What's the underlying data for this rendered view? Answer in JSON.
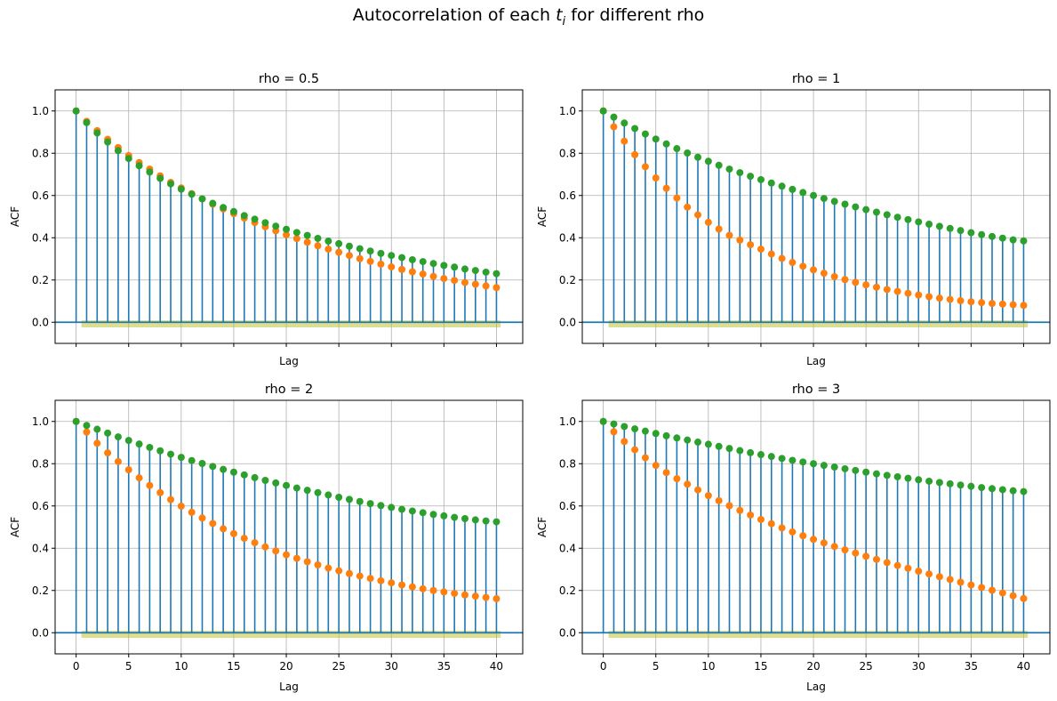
{
  "figure": {
    "title_prefix": "Autocorrelation of each ",
    "title_var": "t",
    "title_sub": "i",
    "title_suffix": " for different rho"
  },
  "colors": {
    "stem": "#1f77b4",
    "series_a": "#ff7f0e",
    "series_b": "#2ca02c",
    "confidence_band": "#bcbd22",
    "grid": "#b0b0b0"
  },
  "chart_data": [
    {
      "type": "stem",
      "title": "rho = 0.5",
      "xlabel": "Lag",
      "ylabel": "ACF",
      "xlim": [
        -2,
        42.5
      ],
      "ylim": [
        -0.1,
        1.1
      ],
      "xticks": [
        0,
        5,
        10,
        15,
        20,
        25,
        30,
        35,
        40
      ],
      "yticks": [
        0.0,
        0.2,
        0.4,
        0.6,
        0.8,
        1.0
      ],
      "show_xtick_labels": false,
      "grid": true,
      "lags_from": 0,
      "lags_to": 40,
      "series": [
        {
          "values": [
            1.0,
            0.951,
            0.907,
            0.866,
            0.827,
            0.789,
            0.756,
            0.725,
            0.693,
            0.662,
            0.636,
            0.609,
            0.584,
            0.559,
            0.536,
            0.514,
            0.493,
            0.472,
            0.452,
            0.433,
            0.414,
            0.396,
            0.379,
            0.362,
            0.346,
            0.331,
            0.316,
            0.301,
            0.288,
            0.275,
            0.262,
            0.25,
            0.239,
            0.228,
            0.217,
            0.207,
            0.198,
            0.188,
            0.18,
            0.172,
            0.164
          ]
        },
        {
          "values": [
            1.0,
            0.945,
            0.896,
            0.853,
            0.812,
            0.775,
            0.741,
            0.711,
            0.681,
            0.655,
            0.63,
            0.606,
            0.584,
            0.563,
            0.543,
            0.524,
            0.505,
            0.488,
            0.471,
            0.455,
            0.44,
            0.425,
            0.411,
            0.397,
            0.384,
            0.372,
            0.36,
            0.348,
            0.337,
            0.326,
            0.316,
            0.306,
            0.296,
            0.287,
            0.278,
            0.269,
            0.261,
            0.252,
            0.245,
            0.237,
            0.23
          ]
        }
      ]
    },
    {
      "type": "stem",
      "title": "rho = 1",
      "xlabel": "Lag",
      "ylabel": "ACF",
      "xlim": [
        -2,
        42.5
      ],
      "ylim": [
        -0.1,
        1.1
      ],
      "xticks": [
        0,
        5,
        10,
        15,
        20,
        25,
        30,
        35,
        40
      ],
      "yticks": [
        0.0,
        0.2,
        0.4,
        0.6,
        0.8,
        1.0
      ],
      "show_xtick_labels": false,
      "grid": true,
      "lags_from": 0,
      "lags_to": 40,
      "series": [
        {
          "values": [
            1.0,
            0.925,
            0.857,
            0.793,
            0.736,
            0.683,
            0.634,
            0.588,
            0.545,
            0.508,
            0.473,
            0.441,
            0.411,
            0.389,
            0.367,
            0.346,
            0.323,
            0.302,
            0.283,
            0.265,
            0.248,
            0.232,
            0.216,
            0.202,
            0.189,
            0.177,
            0.166,
            0.155,
            0.146,
            0.137,
            0.129,
            0.121,
            0.114,
            0.108,
            0.102,
            0.097,
            0.093,
            0.089,
            0.086,
            0.083,
            0.08
          ]
        },
        {
          "values": [
            1.0,
            0.971,
            0.943,
            0.917,
            0.891,
            0.867,
            0.844,
            0.822,
            0.801,
            0.781,
            0.762,
            0.743,
            0.725,
            0.708,
            0.691,
            0.675,
            0.659,
            0.644,
            0.629,
            0.614,
            0.6,
            0.586,
            0.572,
            0.559,
            0.546,
            0.533,
            0.521,
            0.509,
            0.497,
            0.486,
            0.475,
            0.464,
            0.454,
            0.444,
            0.434,
            0.424,
            0.415,
            0.406,
            0.398,
            0.39,
            0.385
          ]
        }
      ]
    },
    {
      "type": "stem",
      "title": "rho = 2",
      "xlabel": "Lag",
      "ylabel": "ACF",
      "xlim": [
        -2,
        42.5
      ],
      "ylim": [
        -0.1,
        1.1
      ],
      "xticks": [
        0,
        5,
        10,
        15,
        20,
        25,
        30,
        35,
        40
      ],
      "yticks": [
        0.0,
        0.2,
        0.4,
        0.6,
        0.8,
        1.0
      ],
      "show_xtick_labels": true,
      "grid": true,
      "lags_from": 0,
      "lags_to": 40,
      "series": [
        {
          "values": [
            1.0,
            0.95,
            0.897,
            0.851,
            0.81,
            0.771,
            0.733,
            0.697,
            0.663,
            0.63,
            0.599,
            0.57,
            0.543,
            0.517,
            0.492,
            0.469,
            0.447,
            0.426,
            0.406,
            0.387,
            0.369,
            0.352,
            0.336,
            0.321,
            0.306,
            0.293,
            0.28,
            0.268,
            0.257,
            0.246,
            0.236,
            0.226,
            0.217,
            0.208,
            0.2,
            0.193,
            0.186,
            0.179,
            0.173,
            0.167,
            0.161
          ]
        },
        {
          "values": [
            1.0,
            0.981,
            0.963,
            0.945,
            0.927,
            0.91,
            0.893,
            0.877,
            0.861,
            0.845,
            0.83,
            0.815,
            0.801,
            0.787,
            0.773,
            0.76,
            0.747,
            0.734,
            0.721,
            0.709,
            0.697,
            0.685,
            0.674,
            0.663,
            0.652,
            0.641,
            0.631,
            0.621,
            0.611,
            0.602,
            0.593,
            0.584,
            0.576,
            0.568,
            0.56,
            0.553,
            0.546,
            0.54,
            0.534,
            0.529,
            0.525
          ]
        }
      ]
    },
    {
      "type": "stem",
      "title": "rho = 3",
      "xlabel": "Lag",
      "ylabel": "ACF",
      "xlim": [
        -2,
        42.5
      ],
      "ylim": [
        -0.1,
        1.1
      ],
      "xticks": [
        0,
        5,
        10,
        15,
        20,
        25,
        30,
        35,
        40
      ],
      "yticks": [
        0.0,
        0.2,
        0.4,
        0.6,
        0.8,
        1.0
      ],
      "show_xtick_labels": true,
      "grid": true,
      "lags_from": 0,
      "lags_to": 40,
      "series": [
        {
          "values": [
            1.0,
            0.951,
            0.905,
            0.866,
            0.828,
            0.792,
            0.758,
            0.729,
            0.703,
            0.676,
            0.649,
            0.625,
            0.601,
            0.579,
            0.557,
            0.536,
            0.516,
            0.496,
            0.477,
            0.459,
            0.442,
            0.425,
            0.408,
            0.392,
            0.377,
            0.362,
            0.347,
            0.332,
            0.318,
            0.305,
            0.291,
            0.278,
            0.265,
            0.252,
            0.239,
            0.226,
            0.214,
            0.201,
            0.188,
            0.175,
            0.162
          ]
        },
        {
          "values": [
            1.0,
            0.988,
            0.976,
            0.965,
            0.954,
            0.943,
            0.932,
            0.922,
            0.912,
            0.902,
            0.892,
            0.882,
            0.872,
            0.862,
            0.852,
            0.843,
            0.834,
            0.825,
            0.816,
            0.808,
            0.8,
            0.792,
            0.784,
            0.776,
            0.768,
            0.76,
            0.752,
            0.745,
            0.738,
            0.731,
            0.724,
            0.717,
            0.711,
            0.705,
            0.699,
            0.693,
            0.687,
            0.682,
            0.677,
            0.672,
            0.668
          ]
        }
      ]
    }
  ]
}
